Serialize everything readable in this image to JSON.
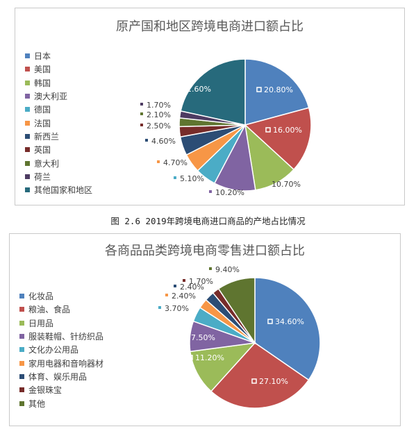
{
  "charts": [
    {
      "chart_data": {
        "type": "pie",
        "title": "原产国和地区跨境电商进口额占比",
        "categories": [
          "日本",
          "美国",
          "韩国",
          "澳大利亚",
          "德国",
          "法国",
          "新西兰",
          "英国",
          "意大利",
          "荷兰",
          "其他国家和地区"
        ],
        "values": [
          20.8,
          16.0,
          10.7,
          10.2,
          5.1,
          4.7,
          4.6,
          2.5,
          2.1,
          1.7,
          21.6
        ],
        "data_labels": [
          "20.80%",
          "16.00%",
          "10.70%",
          "10.20%",
          "5.10%",
          "4.70%",
          "4.60%",
          "2.50%",
          "2.10%",
          "1.70%",
          "21.60%"
        ],
        "colors": [
          "#4f81bd",
          "#c0504d",
          "#9bbb59",
          "#8064a2",
          "#4bacc6",
          "#f79646",
          "#2c4d75",
          "#772c2a",
          "#5f7530",
          "#4d3b62",
          "#276a7c"
        ],
        "legend_position": "left"
      }
    },
    {
      "chart_data": {
        "type": "pie",
        "title": "各商品品类跨境电商零售进口额占比",
        "categories": [
          "化妆品",
          "粮油、食品",
          "日用品",
          "服装鞋帽、针纺织品",
          "文化办公用品",
          "家用电器和音响器材",
          "体育、娱乐用品",
          "金银珠宝",
          "其他"
        ],
        "values": [
          34.6,
          27.1,
          11.2,
          7.5,
          3.7,
          2.4,
          2.4,
          1.7,
          9.4
        ],
        "data_labels": [
          "34.60%",
          "27.10%",
          "11.20%",
          "7.50%",
          "3.70%",
          "2.40%",
          "2.40%",
          "1.70%",
          "9.40%"
        ],
        "colors": [
          "#4f81bd",
          "#c0504d",
          "#9bbb59",
          "#8064a2",
          "#4bacc6",
          "#f79646",
          "#2c4d75",
          "#772c2a",
          "#5f7530"
        ],
        "legend_position": "left"
      }
    }
  ],
  "figure_caption": "图 2.6  2019年跨境电商进口商品的产地占比情况"
}
